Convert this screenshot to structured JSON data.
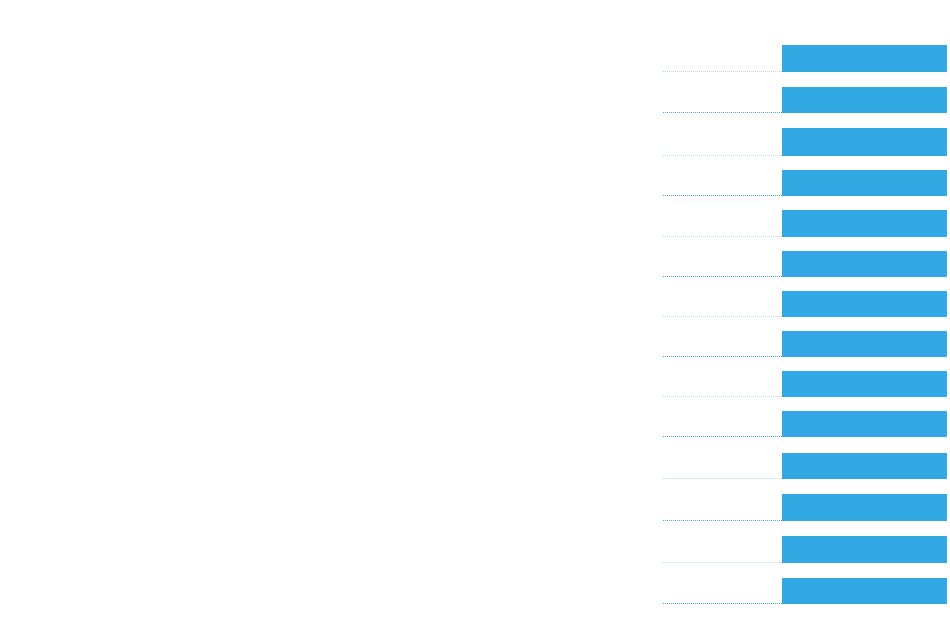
{
  "theme": {
    "bar_color": "#33a9e3",
    "leader_colors": [
      "#bcd9ea",
      "#4aa8dc"
    ]
  },
  "item_count": 14
}
